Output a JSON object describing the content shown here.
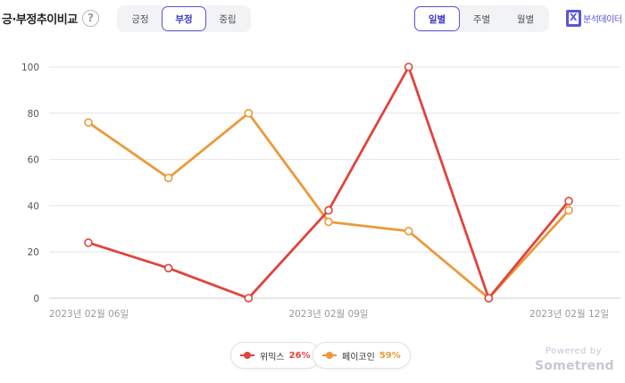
{
  "header": {
    "title": "긍·부정추이비교",
    "help_glyph": "?",
    "sentiment_tabs": [
      {
        "label": "긍정",
        "active": false
      },
      {
        "label": "부정",
        "active": true
      },
      {
        "label": "중립",
        "active": false
      }
    ],
    "period_tabs": [
      {
        "label": "일별",
        "active": true
      },
      {
        "label": "주별",
        "active": false
      },
      {
        "label": "월별",
        "active": false
      }
    ],
    "export_label": "분석데이터",
    "export_icon": "excel-icon"
  },
  "chart_data": {
    "type": "line",
    "x": [
      "2023-02-06",
      "2023-02-07",
      "2023-02-08",
      "2023-02-09",
      "2023-02-10",
      "2023-02-11",
      "2023-02-12"
    ],
    "x_tick_labels": [
      {
        "index": 0,
        "label": "2023년 02월 06일"
      },
      {
        "index": 3,
        "label": "2023년 02월 09일"
      },
      {
        "index": 6,
        "label": "2023년 02월 12일"
      }
    ],
    "y_ticks": [
      0,
      20,
      40,
      60,
      80,
      100
    ],
    "ylim": [
      0,
      100
    ],
    "grid": true,
    "legend_position": "bottom-center",
    "series": [
      {
        "name": "위믹스",
        "percent": "26%",
        "color": "#e0443e",
        "values": [
          24,
          13,
          0,
          38,
          100,
          0,
          42
        ]
      },
      {
        "name": "페이코인",
        "percent": "59%",
        "color": "#eb9a3a",
        "values": [
          76,
          52,
          80,
          33,
          29,
          0,
          38
        ]
      }
    ]
  },
  "footer": {
    "powered_by": "Powered by",
    "brand": "Sometrend"
  }
}
